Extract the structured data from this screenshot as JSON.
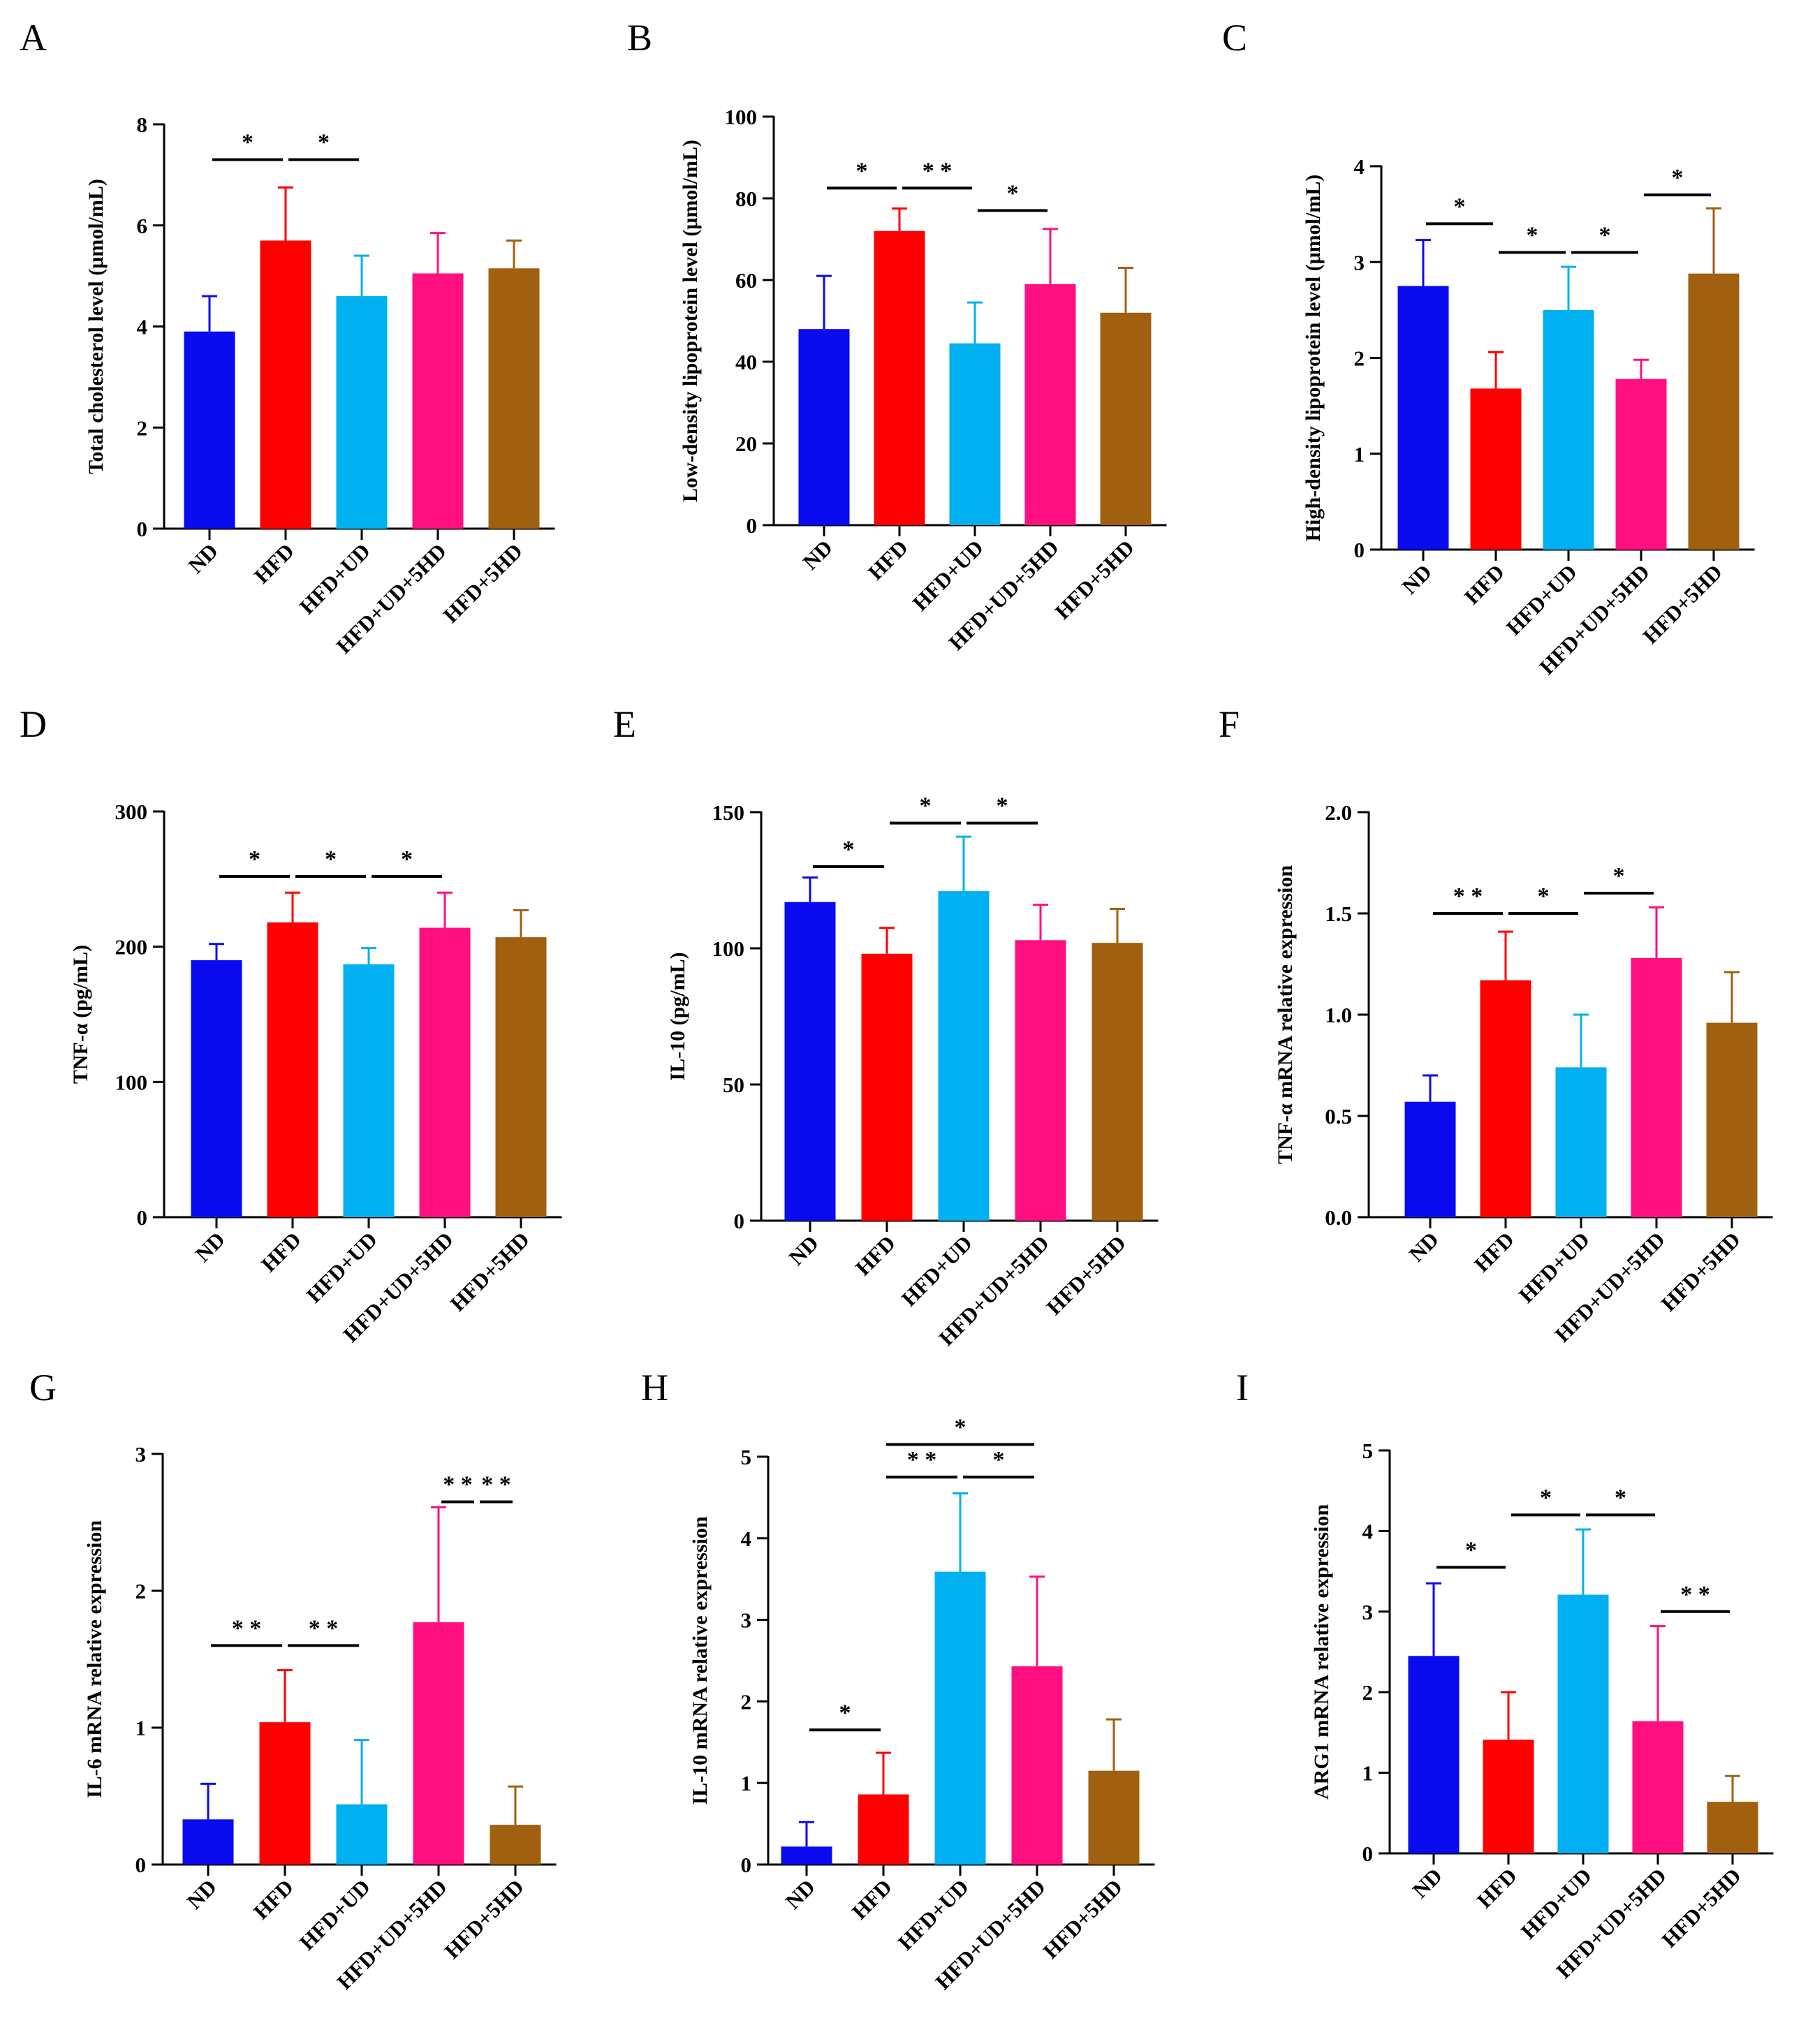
{
  "colors": {
    "ND": "#0a0aee",
    "HFD": "#ff0000",
    "HFD+UD": "#00b0f0",
    "HFD+UD+5HD": "#ff0f80",
    "HFD+5HD": "#a06010"
  },
  "chart_data": [
    {
      "panel": "A",
      "type": "bar",
      "ylabel": "Total cholesterol level (μmol/mL)",
      "categories": [
        "ND",
        "HFD",
        "HFD+UD",
        "HFD+UD+5HD",
        "HFD+5HD"
      ],
      "values": [
        3.9,
        5.7,
        4.6,
        5.05,
        5.15
      ],
      "errors": [
        0.7,
        1.05,
        0.8,
        0.8,
        0.55
      ],
      "ylim": [
        0,
        8
      ],
      "yticks": [
        0,
        2,
        4,
        6,
        8
      ],
      "tick_labels": [
        "0",
        "2",
        "4",
        "6",
        "8"
      ],
      "significance": [
        {
          "from": 0,
          "to": 1,
          "label": "*",
          "level": 7.3
        },
        {
          "from": 1,
          "to": 2,
          "label": "*",
          "level": 7.3
        }
      ]
    },
    {
      "panel": "B",
      "type": "bar",
      "ylabel": "Low-density lipoprotein level (μmol/mL)",
      "categories": [
        "ND",
        "HFD",
        "HFD+UD",
        "HFD+UD+5HD",
        "HFD+5HD"
      ],
      "values": [
        48,
        72,
        44.5,
        59,
        52
      ],
      "errors": [
        13,
        5.5,
        10,
        13.5,
        11
      ],
      "ylim": [
        0,
        100
      ],
      "yticks": [
        0,
        20,
        40,
        60,
        80,
        100
      ],
      "tick_labels": [
        "0",
        "20",
        "40",
        "60",
        "80",
        "100"
      ],
      "significance": [
        {
          "from": 0,
          "to": 1,
          "label": "*",
          "level": 82.5
        },
        {
          "from": 1,
          "to": 2,
          "label": "* *",
          "level": 82.5
        },
        {
          "from": 2,
          "to": 3,
          "label": "*",
          "level": 77
        }
      ]
    },
    {
      "panel": "C",
      "type": "bar",
      "ylabel": "High-density lipoprotein level (μmol/mL)",
      "categories": [
        "ND",
        "HFD",
        "HFD+UD",
        "HFD+UD+5HD",
        "HFD+5HD"
      ],
      "values": [
        2.75,
        1.68,
        2.5,
        1.78,
        2.88
      ],
      "errors": [
        0.48,
        0.38,
        0.45,
        0.2,
        0.68
      ],
      "ylim": [
        0,
        4
      ],
      "yticks": [
        0,
        1,
        2,
        3,
        4
      ],
      "tick_labels": [
        "0",
        "1",
        "2",
        "3",
        "4"
      ],
      "significance": [
        {
          "from": 0,
          "to": 1,
          "label": "*",
          "level": 3.4
        },
        {
          "from": 1,
          "to": 2,
          "label": "*",
          "level": 3.1
        },
        {
          "from": 2,
          "to": 3,
          "label": "*",
          "level": 3.1
        },
        {
          "from": 3,
          "to": 4,
          "label": "*",
          "level": 3.7
        }
      ]
    },
    {
      "panel": "D",
      "type": "bar",
      "ylabel": "TNF-α (pg/mL)",
      "categories": [
        "ND",
        "HFD",
        "HFD+UD",
        "HFD+UD+5HD",
        "HFD+5HD"
      ],
      "values": [
        190,
        218,
        187,
        214,
        207
      ],
      "errors": [
        12,
        22,
        12,
        26,
        20
      ],
      "ylim": [
        0,
        300
      ],
      "yticks": [
        0,
        100,
        200,
        300
      ],
      "tick_labels": [
        "0",
        "100",
        "200",
        "300"
      ],
      "significance": [
        {
          "from": 0,
          "to": 1,
          "label": "*",
          "level": 252
        },
        {
          "from": 1,
          "to": 2,
          "label": "*",
          "level": 252
        },
        {
          "from": 2,
          "to": 3,
          "label": "*",
          "level": 252
        }
      ]
    },
    {
      "panel": "E",
      "type": "bar",
      "ylabel": "IL-10 (pg/mL)",
      "categories": [
        "ND",
        "HFD",
        "HFD+UD",
        "HFD+UD+5HD",
        "HFD+5HD"
      ],
      "values": [
        117,
        98,
        121,
        103,
        102
      ],
      "errors": [
        9,
        9.5,
        20,
        13,
        12.5
      ],
      "ylim": [
        0,
        150
      ],
      "yticks": [
        0,
        50,
        100,
        150
      ],
      "tick_labels": [
        "0",
        "50",
        "100",
        "150"
      ],
      "significance": [
        {
          "from": 0,
          "to": 1,
          "label": "*",
          "level": 130
        },
        {
          "from": 1,
          "to": 2,
          "label": "*",
          "level": 146
        },
        {
          "from": 2,
          "to": 3,
          "label": "*",
          "level": 146
        }
      ]
    },
    {
      "panel": "F",
      "type": "bar",
      "ylabel": "TNF-α mRNA relative expression",
      "categories": [
        "ND",
        "HFD",
        "HFD+UD",
        "HFD+UD+5HD",
        "HFD+5HD"
      ],
      "values": [
        0.57,
        1.17,
        0.74,
        1.28,
        0.96
      ],
      "errors": [
        0.13,
        0.24,
        0.26,
        0.25,
        0.25
      ],
      "ylim": [
        0,
        2.0
      ],
      "yticks": [
        0,
        0.5,
        1.0,
        1.5,
        2.0
      ],
      "tick_labels": [
        "0.0",
        "0.5",
        "1.0",
        "1.5",
        "2.0"
      ],
      "significance": [
        {
          "from": 0,
          "to": 1,
          "label": "* *",
          "level": 1.5
        },
        {
          "from": 1,
          "to": 2,
          "label": "*",
          "level": 1.5
        },
        {
          "from": 2,
          "to": 3,
          "label": "*",
          "level": 1.6
        }
      ]
    },
    {
      "panel": "G",
      "type": "bar",
      "ylabel": "IL-6 mRNA relative expression",
      "categories": [
        "ND",
        "HFD",
        "HFD+UD",
        "HFD+UD+5HD",
        "HFD+5HD"
      ],
      "values": [
        0.33,
        1.04,
        0.44,
        1.77,
        0.29
      ],
      "errors": [
        0.26,
        0.38,
        0.47,
        0.84,
        0.28
      ],
      "ylim": [
        0,
        3
      ],
      "yticks": [
        0,
        1,
        2,
        3
      ],
      "tick_labels": [
        "0",
        "1",
        "2",
        "3"
      ],
      "significance": [
        {
          "from": 0,
          "to": 1,
          "label": "* *",
          "level": 1.6
        },
        {
          "from": 1,
          "to": 2,
          "label": "* *",
          "level": 1.6
        },
        {
          "from": 3,
          "to": 3.5,
          "label": "* *",
          "level": 2.65
        },
        {
          "from": 3.5,
          "to": 4,
          "label": "* *",
          "level": 2.65
        }
      ]
    },
    {
      "panel": "H",
      "type": "bar",
      "ylabel": "IL-10 mRNA relative expression",
      "categories": [
        "ND",
        "HFD",
        "HFD+UD",
        "HFD+UD+5HD",
        "HFD+5HD"
      ],
      "values": [
        0.22,
        0.86,
        3.59,
        2.43,
        1.15
      ],
      "errors": [
        0.3,
        0.51,
        0.96,
        1.1,
        0.63
      ],
      "ylim": [
        0,
        5
      ],
      "yticks": [
        0,
        1,
        2,
        3,
        4,
        5
      ],
      "tick_labels": [
        "0",
        "1",
        "2",
        "3",
        "4",
        "5"
      ],
      "significance": [
        {
          "from": 0,
          "to": 1,
          "label": "*",
          "level": 1.65
        },
        {
          "from": 1,
          "to": 2,
          "label": "* *",
          "level": 4.75
        },
        {
          "from": 2,
          "to": 3,
          "label": "*",
          "level": 4.75
        },
        {
          "from": 1,
          "to": 3,
          "label": "*",
          "level": 5.15
        }
      ]
    },
    {
      "panel": "I",
      "type": "bar",
      "ylabel": "ARG1 mRNA relative expression",
      "categories": [
        "ND",
        "HFD",
        "HFD+UD",
        "HFD+UD+5HD",
        "HFD+5HD"
      ],
      "values": [
        2.45,
        1.41,
        3.21,
        1.64,
        0.64
      ],
      "errors": [
        0.9,
        0.59,
        0.81,
        1.18,
        0.32
      ],
      "ylim": [
        0,
        5
      ],
      "yticks": [
        0,
        1,
        2,
        3,
        4,
        5
      ],
      "tick_labels": [
        "0",
        "1",
        "2",
        "3",
        "4",
        "5"
      ],
      "significance": [
        {
          "from": 0,
          "to": 1,
          "label": "*",
          "level": 3.55
        },
        {
          "from": 1,
          "to": 2,
          "label": "*",
          "level": 4.2
        },
        {
          "from": 2,
          "to": 3,
          "label": "*",
          "level": 4.2
        },
        {
          "from": 3,
          "to": 4,
          "label": "* *",
          "level": 3.0
        }
      ]
    }
  ]
}
